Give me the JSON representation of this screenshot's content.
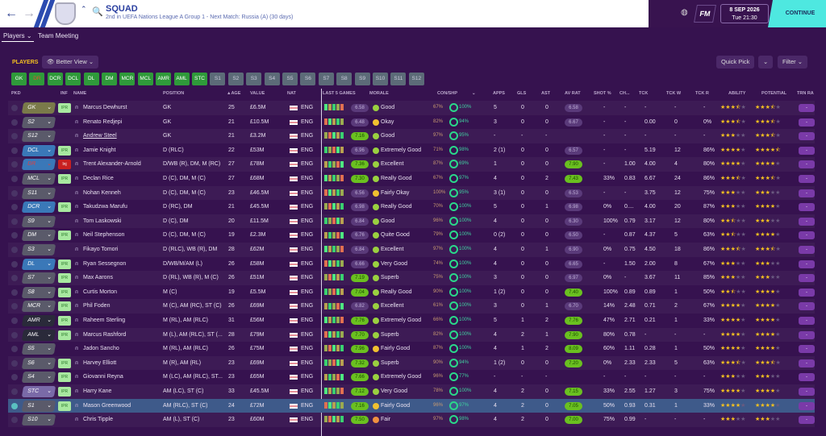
{
  "header": {
    "title": "SQUAD",
    "subtitle": "2nd in UEFA Nations League A Group 1 - Next Match: Russia (A) (30 days)",
    "date": "8 SEP 2026",
    "time": "Tue 21:30",
    "fm": "FM",
    "continue": "CONTINUE",
    "back": "←",
    "forward": "→"
  },
  "tabs": {
    "players": "Players ⌄",
    "team_meeting": "Team Meeting"
  },
  "toolbar": {
    "label": "PLAYERS",
    "view": "👁 Better View ⌄",
    "quick_pick": "Quick Pick",
    "qp_arrow": "⌄",
    "filter": "Filter ⌄"
  },
  "position_filters": [
    [
      "GK",
      "g"
    ],
    [
      "DR",
      "g"
    ],
    [
      "DCR",
      "g"
    ],
    [
      "DCL",
      "g"
    ],
    [
      "DL",
      "g"
    ],
    [
      "DM",
      "g"
    ],
    [
      "MCR",
      "g"
    ],
    [
      "MCL",
      "g"
    ],
    [
      "AMR",
      "g"
    ],
    [
      "AML",
      "g"
    ],
    [
      "STC",
      "g"
    ],
    [
      "S1",
      "s"
    ],
    [
      "S2",
      "s"
    ],
    [
      "S3",
      "s"
    ],
    [
      "S4",
      "s"
    ],
    [
      "S5",
      "s"
    ],
    [
      "S6",
      "s"
    ],
    [
      "S7",
      "s"
    ],
    [
      "S8",
      "s"
    ],
    [
      "S9",
      "s"
    ],
    [
      "S10",
      "s"
    ],
    [
      "S11",
      "s"
    ],
    [
      "S12",
      "s"
    ]
  ],
  "columns": [
    "PKD",
    "INF",
    "NAME",
    "POSITION",
    "▲AGE",
    "VALUE",
    "NAT",
    "LAST 5 GAMES",
    "MORALE",
    "CON/SHP",
    "⌄",
    "APPS",
    "GLS",
    "AST",
    "AV RAT",
    "SHOT %",
    "CH...",
    "TCK",
    "TCK W",
    "TCK R",
    "ABILITY",
    "POTENTIAL",
    "TRN RA"
  ],
  "colors": {
    "accent": "#4ee8e0",
    "bg": "#36124f",
    "green": "#2f9a3a",
    "rating_hi": "#6ac020"
  },
  "players": [
    [
      "GK",
      "#7a7a4a",
      "IPR",
      "Marcus Dewhurst",
      "GK",
      "25",
      "£6.5M",
      "ENG",
      "6.58",
      "Good",
      "67%",
      "100%",
      "5",
      "0",
      "0",
      "6.58",
      "-",
      "-",
      "-",
      "-",
      "-",
      3.5,
      3.5,
      "-"
    ],
    [
      "S2",
      "#5a5a6a",
      "",
      "Renato Redjepi",
      "GK",
      "21",
      "£10.5M",
      "ENG",
      "6.48",
      "Okay",
      "82%",
      "94%",
      "3",
      "0",
      "0",
      "6.67",
      "-",
      "-",
      "0.00",
      "0",
      "0%",
      3.5,
      3.5,
      "-"
    ],
    [
      "S12",
      "#5a5a6a",
      "",
      "Andrew Steel",
      "GK",
      "21",
      "£3.2M",
      "ENG",
      "7.16",
      "Good",
      "97%",
      "95%",
      "-",
      "-",
      "-",
      "",
      "-",
      "-",
      "-",
      "-",
      "-",
      3,
      3.5,
      "-"
    ],
    [
      "DCL",
      "#3a78b8",
      "IPR",
      "Jamie Knight",
      "D (RLC)",
      "22",
      "£53M",
      "ENG",
      "6.96",
      "Extremely Good",
      "71%",
      "98%",
      "2 (1)",
      "0",
      "0",
      "6.57",
      "-",
      "-",
      "5.19",
      "12",
      "86%",
      4,
      4.5,
      "-"
    ],
    [
      "DR",
      "#3a78b8",
      "Inj",
      "Trent Alexander-Arnold",
      "D/WB (R), DM, M (RC)",
      "27",
      "£78M",
      "ENG",
      "7.36",
      "Excellent",
      "87%",
      "69%",
      "1",
      "0",
      "0",
      "7.90",
      "-",
      "1.00",
      "4.00",
      "4",
      "80%",
      4,
      4,
      "-"
    ],
    [
      "MCL",
      "#5a5a6a",
      "IPR",
      "Declan Rice",
      "D (C), DM, M (C)",
      "27",
      "£68M",
      "ENG",
      "7.30",
      "Really Good",
      "67%",
      "97%",
      "4",
      "0",
      "2",
      "7.43",
      "33%",
      "0.83",
      "6.67",
      "24",
      "86%",
      3.5,
      3.5,
      "-"
    ],
    [
      "S11",
      "#5a5a6a",
      "",
      "Nohan Kenneh",
      "D (C), DM, M (C)",
      "23",
      "£46.5M",
      "ENG",
      "6.56",
      "Fairly Okay",
      "100%",
      "95%",
      "3 (1)",
      "0",
      "0",
      "6.53",
      "-",
      "-",
      "3.75",
      "12",
      "75%",
      3,
      3,
      "-"
    ],
    [
      "DCR",
      "#3a78b8",
      "IPR",
      "Takudzwa Marufu",
      "D (RC), DM",
      "21",
      "£45.5M",
      "ENG",
      "6.98",
      "Really Good",
      "70%",
      "100%",
      "5",
      "0",
      "1",
      "6.98",
      "0%",
      "0....",
      "4.00",
      "20",
      "87%",
      3,
      4,
      "-"
    ],
    [
      "S9",
      "#5a5a6a",
      "",
      "Tom Laskowski",
      "D (C), DM",
      "20",
      "£11.5M",
      "ENG",
      "6.84",
      "Good",
      "96%",
      "100%",
      "4",
      "0",
      "0",
      "6.30",
      "100%",
      "0.79",
      "3.17",
      "12",
      "80%",
      2.5,
      3,
      "-"
    ],
    [
      "DM",
      "#5a5a6a",
      "IPR",
      "Neil Stephenson",
      "D (C), DM, M (C)",
      "19",
      "£2.3M",
      "ENG",
      "6.76",
      "Quite Good",
      "79%",
      "100%",
      "0 (2)",
      "0",
      "0",
      "6.50",
      "-",
      "0.87",
      "4.37",
      "5",
      "63%",
      2.5,
      4,
      "-"
    ],
    [
      "S3",
      "#5a5a6a",
      "",
      "Fikayo Tomori",
      "D (RLC), WB (R), DM",
      "28",
      "£62M",
      "ENG",
      "6.84",
      "Excellent",
      "97%",
      "100%",
      "4",
      "0",
      "1",
      "6.90",
      "0%",
      "0.75",
      "4.50",
      "18",
      "86%",
      3.5,
      3.5,
      "-"
    ],
    [
      "DL",
      "#3a78b8",
      "IPR",
      "Ryan Sessegnon",
      "D/WB/M/AM (L)",
      "26",
      "£58M",
      "ENG",
      "6.66",
      "Very Good",
      "74%",
      "100%",
      "4",
      "0",
      "0",
      "6.65",
      "-",
      "1.50",
      "2.00",
      "8",
      "67%",
      3,
      3,
      "-"
    ],
    [
      "S7",
      "#5a5a6a",
      "IPR",
      "Max Aarons",
      "D (RL), WB (R), M (C)",
      "26",
      "£51M",
      "ENG",
      "7.19",
      "Superb",
      "75%",
      "100%",
      "3",
      "0",
      "0",
      "6.97",
      "0%",
      "-",
      "3.67",
      "11",
      "85%",
      3,
      3,
      "-"
    ],
    [
      "S8",
      "#5a5a6a",
      "IPR",
      "Curtis Morton",
      "M (C)",
      "19",
      "£5.5M",
      "ENG",
      "7.04",
      "Really Good",
      "90%",
      "100%",
      "1 (2)",
      "0",
      "0",
      "7.40",
      "100%",
      "0.89",
      "0.89",
      "1",
      "50%",
      2.5,
      4,
      "-"
    ],
    [
      "MCR",
      "#5a5a6a",
      "IPR",
      "Phil Foden",
      "M (C), AM (RC), ST (C)",
      "26",
      "£69M",
      "ENG",
      "6.82",
      "Excellent",
      "61%",
      "100%",
      "3",
      "0",
      "1",
      "6.70",
      "14%",
      "2.48",
      "0.71",
      "2",
      "67%",
      4,
      4,
      "-"
    ],
    [
      "AMR",
      "#2a2a3a",
      "IPR",
      "Raheem Sterling",
      "M (RL), AM (RLC)",
      "31",
      "£56M",
      "ENG",
      "7.76",
      "Extremely Good",
      "66%",
      "100%",
      "5",
      "1",
      "2",
      "7.76",
      "47%",
      "2.71",
      "0.21",
      "1",
      "33%",
      4,
      4,
      "-"
    ],
    [
      "AML",
      "#2a2a3a",
      "IPR",
      "Marcus Rashford",
      "M (L), AM (RLC), ST (...",
      "28",
      "£79M",
      "ENG",
      "7.70",
      "Superb",
      "82%",
      "100%",
      "4",
      "2",
      "1",
      "7.90",
      "80%",
      "0.78",
      "-",
      "-",
      "-",
      4,
      4,
      "-"
    ],
    [
      "S5",
      "#5a5a6a",
      "",
      "Jadon Sancho",
      "M (RL), AM (RLC)",
      "26",
      "£75M",
      "ENG",
      "7.96",
      "Fairly Good",
      "87%",
      "100%",
      "4",
      "1",
      "2",
      "8.09",
      "60%",
      "1.11",
      "0.28",
      "1",
      "50%",
      4,
      4,
      "-"
    ],
    [
      "S6",
      "#5a5a6a",
      "IPR",
      "Harvey Elliott",
      "M (R), AM (RL)",
      "23",
      "£69M",
      "ENG",
      "7.32",
      "Superb",
      "90%",
      "94%",
      "1 (2)",
      "0",
      "0",
      "7.20",
      "0%",
      "2.33",
      "2.33",
      "5",
      "63%",
      3.5,
      3.5,
      "-"
    ],
    [
      "S4",
      "#5a5a6a",
      "IPR",
      "Giovanni Reyna",
      "M (LC), AM (RLC), ST...",
      "23",
      "£65M",
      "ENG",
      "7.66",
      "Extremely Good",
      "96%",
      "77%",
      "-",
      "-",
      "-",
      "",
      "-",
      "-",
      "-",
      "-",
      "-",
      3,
      3,
      "-"
    ],
    [
      "STC",
      "#7a6aa8",
      "IPR",
      "Harry Kane",
      "AM (LC), ST (C)",
      "33",
      "£45.5M",
      "ENG",
      "7.12",
      "Very Good",
      "78%",
      "100%",
      "4",
      "2",
      "0",
      "7.15",
      "33%",
      "2.55",
      "1.27",
      "3",
      "75%",
      4,
      4,
      "-"
    ],
    [
      "S1",
      "#5a5a6a",
      "IPR",
      "Mason Greenwood",
      "AM (RLC), ST (C)",
      "24",
      "£72M",
      "ENG",
      "7.16",
      "Fairly Good",
      "96%",
      "97%",
      "4",
      "2",
      "0",
      "7.05",
      "50%",
      "0.93",
      "0.31",
      "1",
      "33%",
      4,
      4,
      "-"
    ],
    [
      "S10",
      "#5a5a6a",
      "",
      "Chris Tipple",
      "AM (L), ST (C)",
      "23",
      "£60M",
      "ENG",
      "7.50",
      "Fair",
      "97%",
      "98%",
      "4",
      "2",
      "0",
      "7.00",
      "75%",
      "0.99",
      "-",
      "-",
      "-",
      3,
      3,
      "-"
    ]
  ]
}
